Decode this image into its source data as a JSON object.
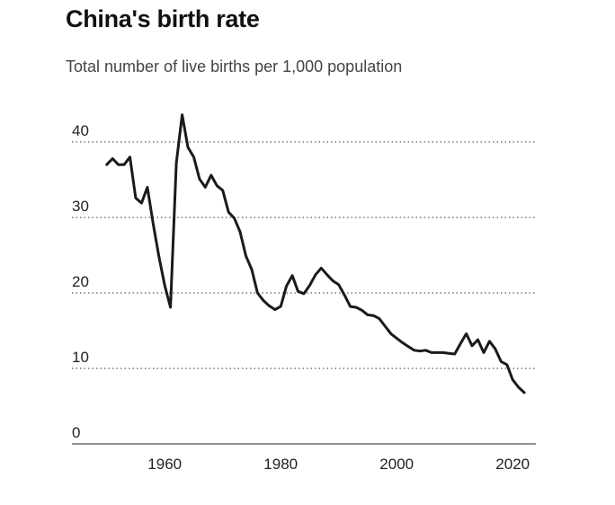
{
  "chart_data": {
    "type": "line",
    "title": "China's birth rate",
    "subtitle": "Total number of live births per 1,000 population",
    "xlabel": "",
    "ylabel": "",
    "xlim": [
      1944,
      2024
    ],
    "ylim": [
      0,
      40
    ],
    "x_ticks": [
      1960,
      1980,
      2000,
      2020
    ],
    "y_ticks": [
      0,
      10,
      20,
      30,
      40
    ],
    "grid": "dotted horizontal",
    "legend": "none",
    "line_color": "#1a1a1a",
    "series": [
      {
        "x": [
          1950,
          1951,
          1952,
          1953,
          1954,
          1955,
          1956,
          1957,
          1958,
          1959,
          1960,
          1961,
          1962,
          1963,
          1964,
          1965,
          1966,
          1967,
          1968,
          1969,
          1970,
          1971,
          1972,
          1973,
          1974,
          1975,
          1976,
          1977,
          1978,
          1979,
          1980,
          1981,
          1982,
          1983,
          1984,
          1985,
          1986,
          1987,
          1988,
          1989,
          1990,
          1991,
          1992,
          1993,
          1994,
          1995,
          1996,
          1997,
          1998,
          1999,
          2000,
          2001,
          2002,
          2003,
          2004,
          2005,
          2006,
          2007,
          2008,
          2009,
          2010,
          2011,
          2012,
          2013,
          2014,
          2015,
          2016,
          2017,
          2018,
          2019,
          2020,
          2021,
          2022
        ],
        "values": [
          37.0,
          37.8,
          37.0,
          37.0,
          38.0,
          32.6,
          31.9,
          34.0,
          29.2,
          24.8,
          21.0,
          18.1,
          37.2,
          43.6,
          39.3,
          38.0,
          35.1,
          34.0,
          35.6,
          34.2,
          33.6,
          30.7,
          29.9,
          28.1,
          24.9,
          23.1,
          20.0,
          19.0,
          18.3,
          17.8,
          18.2,
          20.9,
          22.3,
          20.2,
          19.9,
          21.0,
          22.4,
          23.3,
          22.4,
          21.6,
          21.1,
          19.7,
          18.2,
          18.1,
          17.7,
          17.1,
          17.0,
          16.6,
          15.6,
          14.6,
          14.0,
          13.4,
          12.9,
          12.4,
          12.3,
          12.4,
          12.1,
          12.1,
          12.1,
          12.0,
          11.9,
          13.3,
          14.6,
          13.0,
          13.8,
          12.1,
          13.6,
          12.6,
          10.9,
          10.5,
          8.5,
          7.5,
          6.8
        ]
      }
    ]
  }
}
